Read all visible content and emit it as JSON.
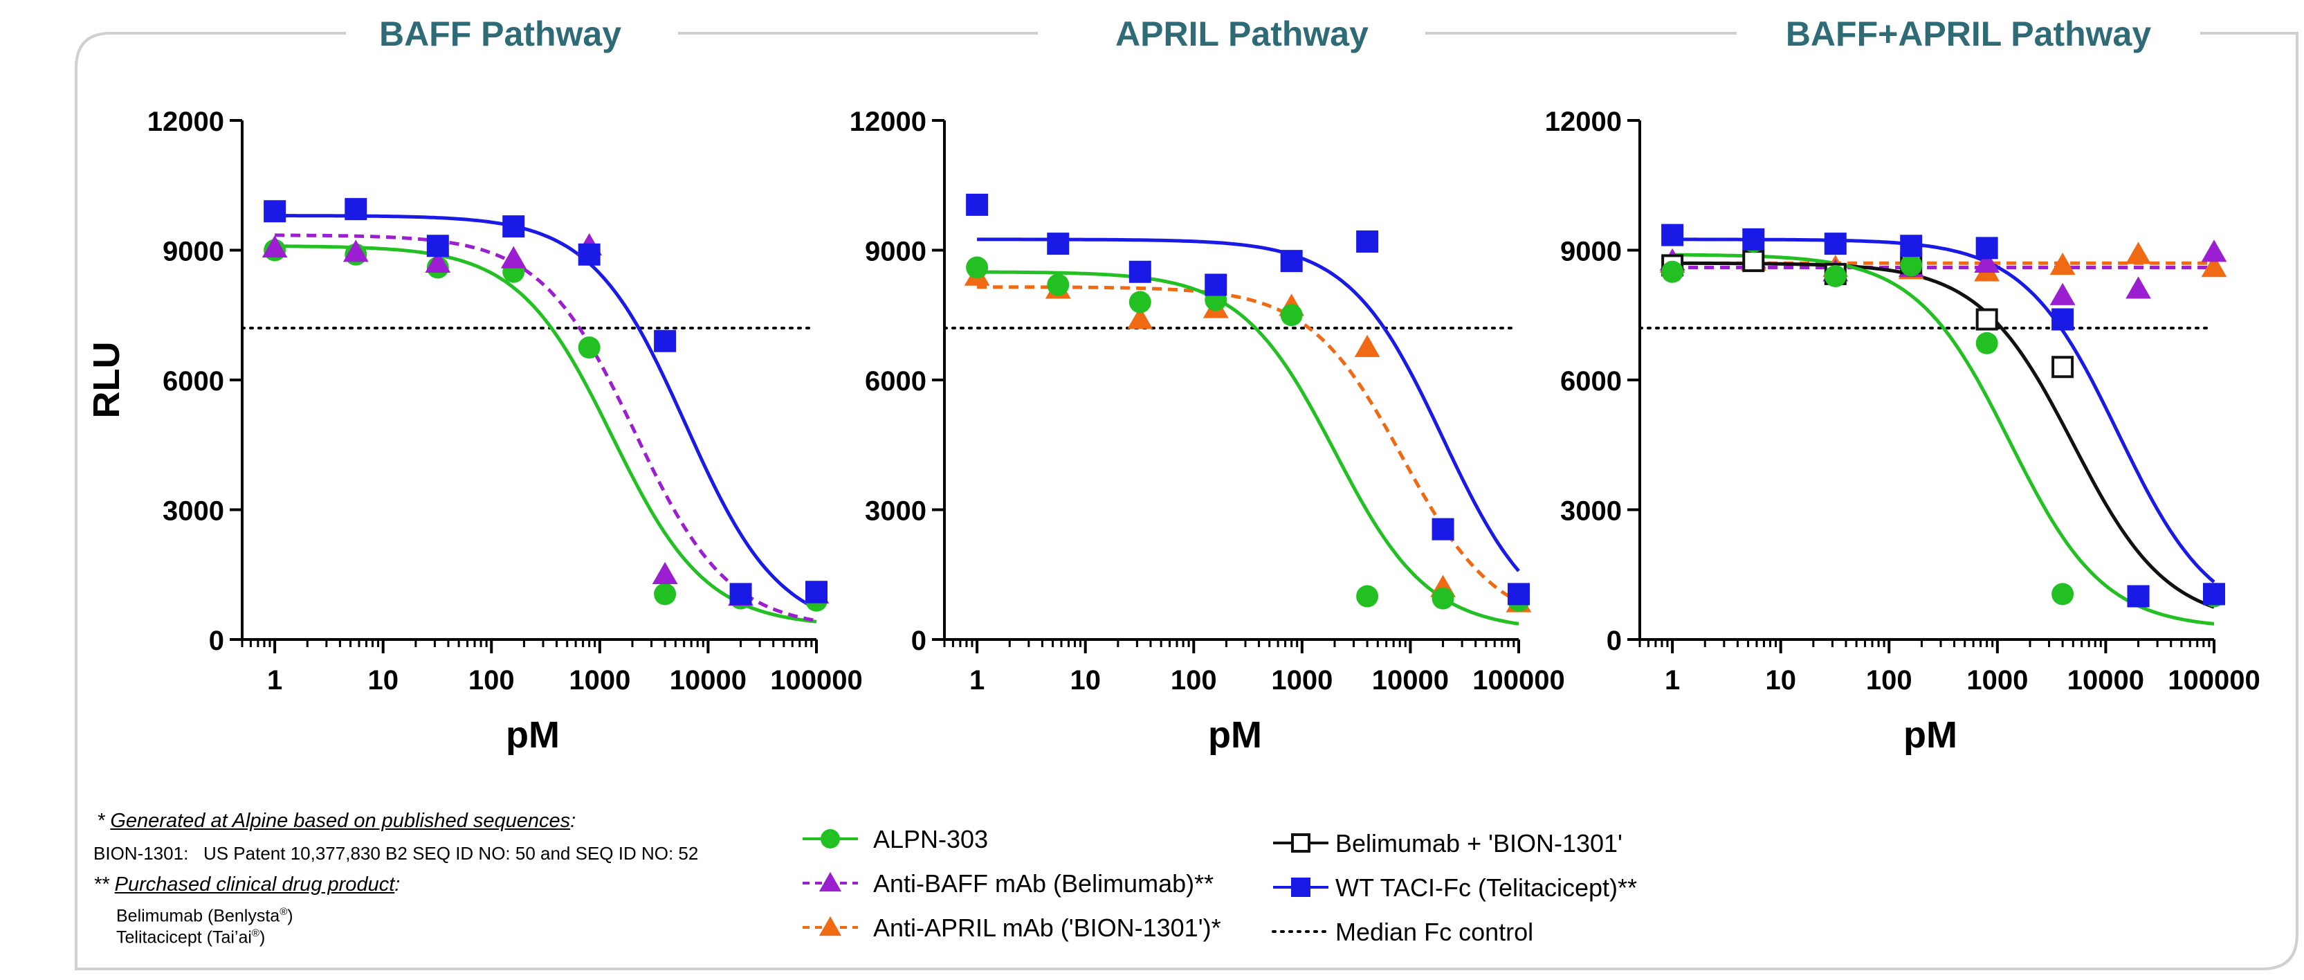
{
  "chart_data": [
    {
      "type": "line",
      "title": "BAFF Pathway",
      "xlabel": "pM",
      "ylabel": "RLU",
      "xscale": "log",
      "xlim": [
        0.5,
        100000
      ],
      "ylim": [
        0,
        12000
      ],
      "xticks": [
        "1",
        "10",
        "100",
        "1000",
        "10000",
        "100000"
      ],
      "yticks": [
        "0",
        "3000",
        "6000",
        "9000",
        "12000"
      ],
      "reference_line": {
        "name": "Median Fc control",
        "y": 7200
      },
      "series": [
        {
          "name": "ALPN-303",
          "marker": "circle",
          "line": "solid",
          "color": "#22c022",
          "x": [
            1,
            5.6,
            32,
            160,
            800,
            4000,
            20000,
            100000
          ],
          "y": [
            9000,
            8900,
            8600,
            8500,
            6750,
            1050,
            950,
            900
          ],
          "fit": {
            "top": 9100,
            "bottom": 300,
            "ec50": 1300,
            "hill": 1.0
          }
        },
        {
          "name": "Anti-BAFF mAb (Belimumab)**",
          "marker": "triangle",
          "line": "dashed",
          "color": "#9b1fd1",
          "x": [
            1,
            5.6,
            32,
            160,
            800,
            4000,
            20000,
            100000
          ],
          "y": [
            9050,
            8950,
            8700,
            8800,
            9100,
            1500,
            1000,
            1050
          ],
          "fit": {
            "top": 9350,
            "bottom": 250,
            "ec50": 2100,
            "hill": 1.0
          }
        },
        {
          "name": "WT TACI-Fc (Telitacicept)**",
          "marker": "square",
          "line": "solid",
          "color": "#1a1ae6",
          "x": [
            1,
            5.6,
            32,
            160,
            800,
            4000,
            20000,
            100000
          ],
          "y": [
            9900,
            9950,
            9100,
            9550,
            8900,
            6900,
            1050,
            1100
          ],
          "fit": {
            "top": 9800,
            "bottom": 150,
            "ec50": 6200,
            "hill": 1.0
          }
        }
      ]
    },
    {
      "type": "line",
      "title": "APRIL Pathway",
      "xlabel": "pM",
      "ylabel": "",
      "xscale": "log",
      "xlim": [
        0.5,
        100000
      ],
      "ylim": [
        0,
        12000
      ],
      "xticks": [
        "1",
        "10",
        "100",
        "1000",
        "10000",
        "100000"
      ],
      "yticks": [
        "0",
        "3000",
        "6000",
        "9000",
        "12000"
      ],
      "reference_line": {
        "name": "Median Fc control",
        "y": 7200
      },
      "series": [
        {
          "name": "Anti-APRIL mAb ('BION-1301')*",
          "marker": "triangle",
          "line": "dashed",
          "color": "#f06a14",
          "x": [
            1,
            5.6,
            32,
            160,
            800,
            4000,
            20000,
            100000
          ],
          "y": [
            8400,
            8100,
            7400,
            7650,
            7700,
            6750,
            1200,
            850
          ],
          "fit": {
            "top": 8150,
            "bottom": 250,
            "ec50": 8500,
            "hill": 1.0
          }
        },
        {
          "name": "ALPN-303",
          "marker": "circle",
          "line": "solid",
          "color": "#22c022",
          "x": [
            1,
            5.6,
            32,
            160,
            800,
            4000,
            20000,
            100000
          ],
          "y": [
            8600,
            8200,
            7800,
            7850,
            7500,
            1000,
            950,
            900
          ],
          "fit": {
            "top": 8500,
            "bottom": 200,
            "ec50": 2000,
            "hill": 1.0
          }
        },
        {
          "name": "WT TACI-Fc (Telitacicept)**",
          "marker": "square",
          "line": "solid",
          "color": "#1a1ae6",
          "x": [
            1,
            5.6,
            32,
            160,
            800,
            4000,
            20000,
            100000
          ],
          "y": [
            10050,
            9150,
            8500,
            8200,
            8750,
            9200,
            2550,
            1050
          ],
          "fit": {
            "top": 9250,
            "bottom": 50,
            "ec50": 20000,
            "hill": 1.0
          }
        }
      ]
    },
    {
      "type": "line",
      "title": "BAFF+APRIL Pathway",
      "xlabel": "pM",
      "ylabel": "",
      "xscale": "log",
      "xlim": [
        0.5,
        100000
      ],
      "ylim": [
        0,
        12000
      ],
      "xticks": [
        "1",
        "10",
        "100",
        "1000",
        "10000",
        "100000"
      ],
      "yticks": [
        "0",
        "3000",
        "6000",
        "9000",
        "12000"
      ],
      "reference_line": {
        "name": "Median Fc control",
        "y": 7200
      },
      "series": [
        {
          "name": "Anti-APRIL mAb ('BION-1301')*",
          "marker": "triangle",
          "line": "dashed",
          "color": "#f06a14",
          "x": [
            1,
            5.6,
            32,
            160,
            800,
            4000,
            20000,
            100000
          ],
          "y": [
            8700,
            8750,
            8600,
            8550,
            8500,
            8650,
            8900,
            8600
          ],
          "fit": {
            "top": 8700,
            "bottom": 8700,
            "ec50": 1000,
            "hill": 1.0
          }
        },
        {
          "name": "Anti-BAFF mAb (Belimumab)**",
          "marker": "triangle",
          "line": "dashed",
          "color": "#9b1fd1",
          "x": [
            1,
            5.6,
            32,
            160,
            800,
            4000,
            20000,
            100000
          ],
          "y": [
            8750,
            8800,
            8500,
            8600,
            8700,
            7950,
            8100,
            8950
          ],
          "fit": {
            "top": 8600,
            "bottom": 8600,
            "ec50": 1000,
            "hill": 1.0
          }
        },
        {
          "name": "Belimumab + 'BION-1301'",
          "marker": "open-square",
          "line": "solid",
          "color": "#111111",
          "x": [
            1,
            5.6,
            32,
            160,
            800,
            4000,
            20000,
            100000
          ],
          "y": [
            8650,
            8750,
            8450,
            8700,
            7400,
            6300,
            1000,
            1050
          ],
          "fit": {
            "top": 8700,
            "bottom": 350,
            "ec50": 5000,
            "hill": 1.0
          }
        },
        {
          "name": "ALPN-303",
          "marker": "circle",
          "line": "solid",
          "color": "#22c022",
          "x": [
            1,
            5.6,
            32,
            160,
            800,
            4000,
            20000,
            100000
          ],
          "y": [
            8500,
            9200,
            8400,
            8650,
            6850,
            1050,
            1000,
            1000
          ],
          "fit": {
            "top": 8900,
            "bottom": 250,
            "ec50": 1300,
            "hill": 1.0
          }
        },
        {
          "name": "WT TACI-Fc (Telitacicept)**",
          "marker": "square",
          "line": "solid",
          "color": "#1a1ae6",
          "x": [
            1,
            5.6,
            32,
            160,
            800,
            4000,
            20000,
            100000
          ],
          "y": [
            9350,
            9250,
            9150,
            9100,
            9050,
            7400,
            1000,
            1050
          ],
          "fit": {
            "top": 9250,
            "bottom": 300,
            "ec50": 13000,
            "hill": 1.0
          }
        }
      ]
    }
  ],
  "legend": {
    "items": [
      {
        "label": "ALPN-303",
        "marker": "circle",
        "line": "solid",
        "color": "#22c022"
      },
      {
        "label": "Anti-BAFF mAb (Belimumab)**",
        "marker": "triangle",
        "line": "dashed",
        "color": "#9b1fd1"
      },
      {
        "label": "Anti-APRIL mAb ('BION-1301')*",
        "marker": "triangle",
        "line": "dashed",
        "color": "#f06a14"
      },
      {
        "label": "Belimumab + 'BION-1301'",
        "marker": "open-square",
        "line": "solid",
        "color": "#111111"
      },
      {
        "label": "WT TACI-Fc (Telitacicept)**",
        "marker": "square",
        "line": "solid",
        "color": "#1a1ae6"
      },
      {
        "label": "Median Fc control",
        "marker": "none",
        "line": "dotted",
        "color": "#000000"
      }
    ]
  },
  "footnotes": {
    "star1_prefix": "* ",
    "star1_text": "Generated at Alpine based on published sequences",
    "star1_suffix": ":",
    "bion_line": "BION-1301:   US Patent 10,377,830 B2 SEQ ID NO: 50 and SEQ ID NO: 52",
    "star2_prefix": "** ",
    "star2_text": "Purchased clinical drug product",
    "star2_suffix": ":",
    "belimumab": "Belimumab (Benlysta",
    "telitacicept": "Telitacicept (Tai’ai",
    "reg_mark": "®",
    "close_paren": ")"
  },
  "colors": {
    "title": "#2e6b77",
    "frame": "#d0d0d0",
    "axis": "#000000"
  }
}
